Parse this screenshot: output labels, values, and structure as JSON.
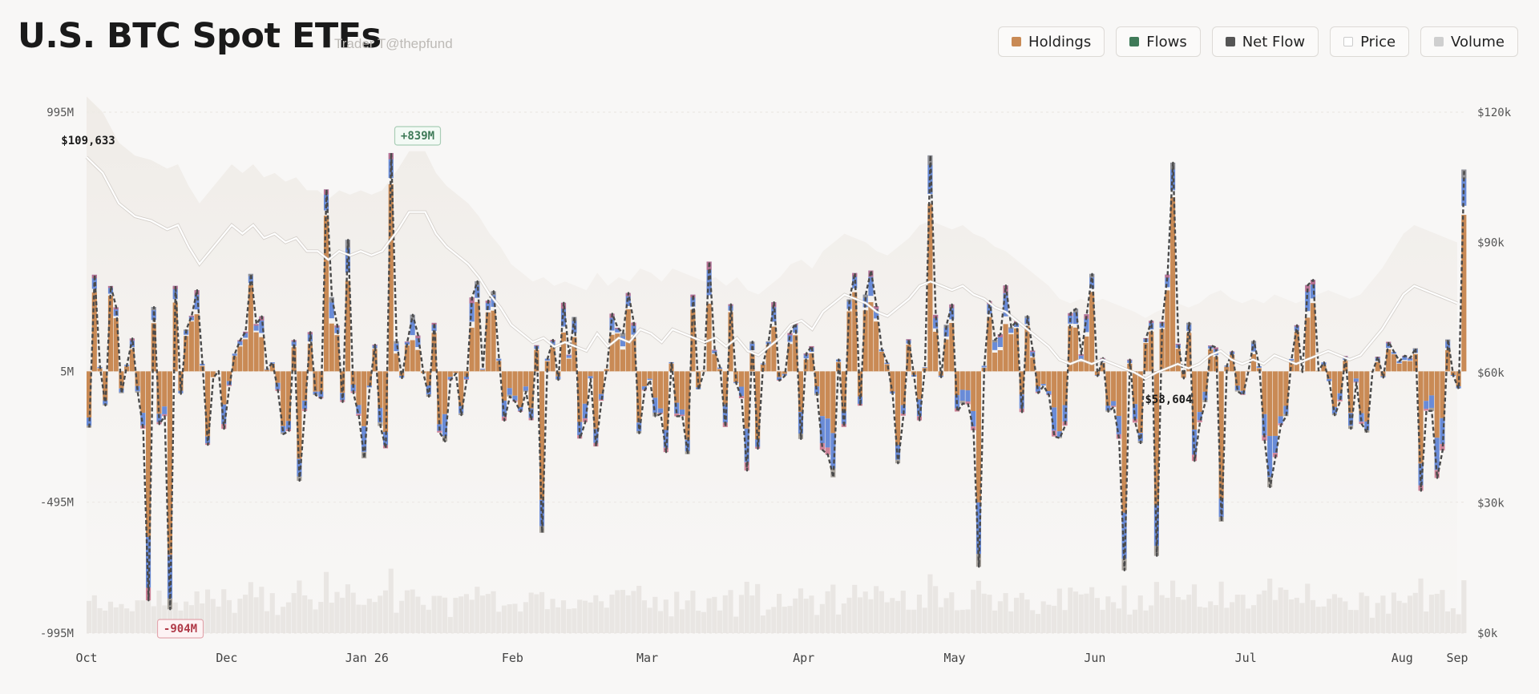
{
  "title": "U.S. BTC Spot ETFs",
  "subtitle": "Trader T@thepfund",
  "legend": [
    {
      "label": "Holdings",
      "color": "#c98a55"
    },
    {
      "label": "Flows",
      "color": "#3f7a58"
    },
    {
      "label": "Net Flow",
      "color": "#555555"
    },
    {
      "label": "Price",
      "color": "#ffffff"
    },
    {
      "label": "Volume",
      "color": "#cfcfcf"
    }
  ],
  "chart_data": {
    "type": "bar",
    "x_ticks": [
      "Oct",
      "Dec",
      "Jan 26",
      "Feb",
      "Mar",
      "Apr",
      "May",
      "Jun",
      "Jul",
      "Aug",
      "Sep"
    ],
    "y_left_ticks": [
      "995M",
      "5M",
      "-495M",
      "-995M"
    ],
    "y_left_range": [
      -995,
      995
    ],
    "y_right_ticks": [
      "$120k",
      "$90k",
      "$60k",
      "$30k",
      "$0k"
    ],
    "y_right_range": [
      0,
      120000
    ],
    "annotations": [
      {
        "label": "$109,633",
        "kind": "price-high"
      },
      {
        "label": "+839M",
        "kind": "max-inflow"
      },
      {
        "label": "-904M",
        "kind": "max-outflow"
      },
      {
        "label": "$58,604",
        "kind": "price-low"
      }
    ],
    "price_series": [
      [
        0,
        109633
      ],
      [
        3,
        106000
      ],
      [
        6,
        99000
      ],
      [
        9,
        96000
      ],
      [
        12,
        95000
      ],
      [
        15,
        93000
      ],
      [
        17,
        94000
      ],
      [
        19,
        89000
      ],
      [
        21,
        85000
      ],
      [
        23,
        88000
      ],
      [
        25,
        91000
      ],
      [
        27,
        94000
      ],
      [
        29,
        92000
      ],
      [
        31,
        94000
      ],
      [
        33,
        91000
      ],
      [
        35,
        92000
      ],
      [
        37,
        90000
      ],
      [
        39,
        91000
      ],
      [
        41,
        88000
      ],
      [
        43,
        88000
      ],
      [
        45,
        86000
      ],
      [
        47,
        88000
      ],
      [
        49,
        87000
      ],
      [
        51,
        88000
      ],
      [
        53,
        87000
      ],
      [
        55,
        88000
      ],
      [
        58,
        93000
      ],
      [
        60,
        97000
      ],
      [
        63,
        97000
      ],
      [
        65,
        92000
      ],
      [
        67,
        89000
      ],
      [
        69,
        87000
      ],
      [
        71,
        85000
      ],
      [
        73,
        82000
      ],
      [
        75,
        78000
      ],
      [
        77,
        75000
      ],
      [
        79,
        71000
      ],
      [
        81,
        69000
      ],
      [
        83,
        67000
      ],
      [
        85,
        68000
      ],
      [
        87,
        66000
      ],
      [
        89,
        67000
      ],
      [
        91,
        66000
      ],
      [
        93,
        65000
      ],
      [
        95,
        69000
      ],
      [
        97,
        66000
      ],
      [
        99,
        68000
      ],
      [
        101,
        67000
      ],
      [
        103,
        70000
      ],
      [
        105,
        69000
      ],
      [
        107,
        67000
      ],
      [
        109,
        70000
      ],
      [
        111,
        69000
      ],
      [
        113,
        68000
      ],
      [
        115,
        67000
      ],
      [
        117,
        68000
      ],
      [
        119,
        66000
      ],
      [
        121,
        68000
      ],
      [
        123,
        65000
      ],
      [
        125,
        64000
      ],
      [
        127,
        66000
      ],
      [
        129,
        68000
      ],
      [
        131,
        71000
      ],
      [
        133,
        72000
      ],
      [
        135,
        70000
      ],
      [
        137,
        74000
      ],
      [
        139,
        76000
      ],
      [
        141,
        78000
      ],
      [
        143,
        77000
      ],
      [
        145,
        76000
      ],
      [
        147,
        74000
      ],
      [
        149,
        73000
      ],
      [
        151,
        75000
      ],
      [
        153,
        77000
      ],
      [
        155,
        80000
      ],
      [
        157,
        81000
      ],
      [
        159,
        80000
      ],
      [
        161,
        79000
      ],
      [
        163,
        80000
      ],
      [
        165,
        78000
      ],
      [
        167,
        77000
      ],
      [
        169,
        75000
      ],
      [
        171,
        74000
      ],
      [
        173,
        72000
      ],
      [
        175,
        70000
      ],
      [
        177,
        68000
      ],
      [
        179,
        66000
      ],
      [
        181,
        63000
      ],
      [
        183,
        62000
      ],
      [
        185,
        63000
      ],
      [
        187,
        62000
      ],
      [
        189,
        63000
      ],
      [
        191,
        62000
      ],
      [
        193,
        61000
      ],
      [
        195,
        60000
      ],
      [
        197,
        58604
      ],
      [
        199,
        60000
      ],
      [
        201,
        61000
      ],
      [
        203,
        62000
      ],
      [
        205,
        61000
      ],
      [
        207,
        62000
      ],
      [
        209,
        64000
      ],
      [
        211,
        65000
      ],
      [
        213,
        63000
      ],
      [
        215,
        62000
      ],
      [
        217,
        63000
      ],
      [
        219,
        62000
      ],
      [
        221,
        64000
      ],
      [
        223,
        63000
      ],
      [
        225,
        62000
      ],
      [
        227,
        63000
      ],
      [
        229,
        64000
      ],
      [
        231,
        65000
      ],
      [
        233,
        64000
      ],
      [
        235,
        63000
      ],
      [
        237,
        64000
      ],
      [
        239,
        67000
      ],
      [
        241,
        70000
      ],
      [
        243,
        74000
      ],
      [
        245,
        78000
      ],
      [
        247,
        80000
      ],
      [
        249,
        79000
      ],
      [
        251,
        78000
      ],
      [
        253,
        77000
      ],
      [
        255,
        76000
      ]
    ]
  }
}
